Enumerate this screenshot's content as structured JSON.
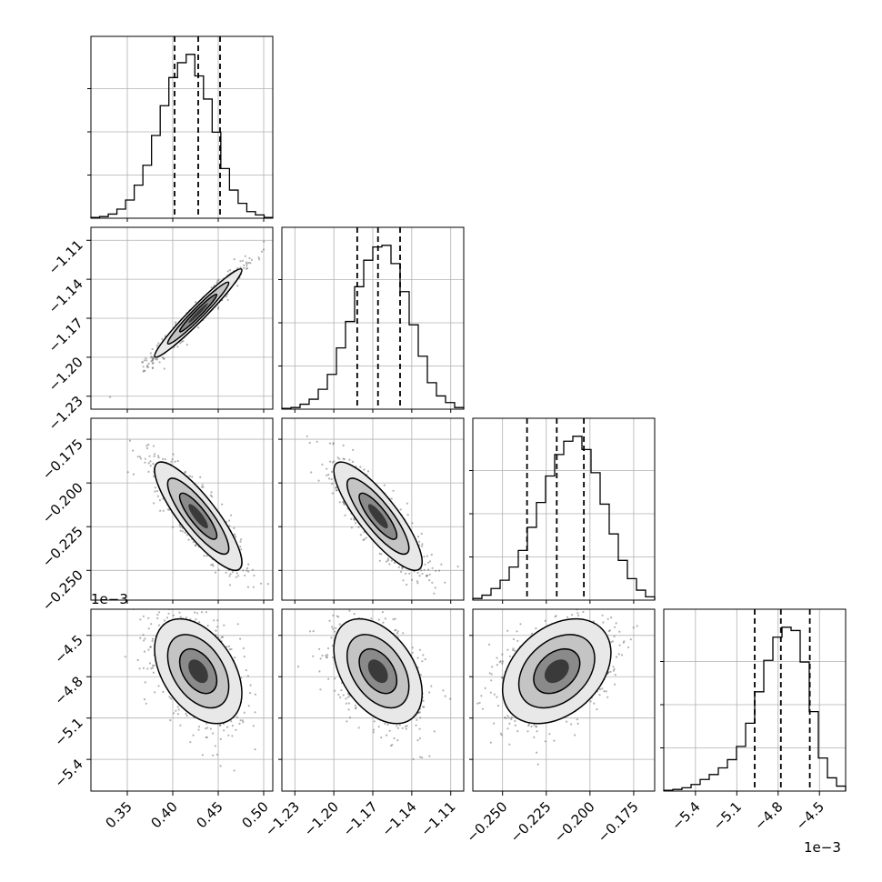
{
  "chart_data": {
    "type": "corner",
    "parameters": [
      {
        "range": [
          0.31,
          0.51
        ],
        "ticks": [
          0.35,
          0.4,
          0.45,
          0.5
        ],
        "tick_labels": [
          "0.35",
          "0.40",
          "0.45",
          "0.50"
        ],
        "mean": 0.428,
        "sigma": 0.024,
        "quantiles": [
          0.402,
          0.428,
          0.452
        ]
      },
      {
        "range": [
          -1.24,
          -1.1
        ],
        "ticks": [
          -1.23,
          -1.2,
          -1.17,
          -1.14,
          -1.11
        ],
        "tick_labels": [
          "−1.23",
          "−1.20",
          "−1.17",
          "−1.14",
          "−1.11"
        ],
        "mean": -1.166,
        "sigma": 0.017,
        "quantiles": [
          -1.182,
          -1.166,
          -1.149
        ]
      },
      {
        "range": [
          -0.267,
          -0.163
        ],
        "ticks": [
          -0.25,
          -0.225,
          -0.2,
          -0.175
        ],
        "tick_labels": [
          "−0.250",
          "−0.225",
          "−0.200",
          "−0.175"
        ],
        "mean": -0.219,
        "sigma": 0.0155,
        "quantiles": [
          -0.236,
          -0.219,
          -0.2035
        ]
      },
      {
        "range": [
          -5.63,
          -4.31
        ],
        "ticks": [
          -5.4,
          -5.1,
          -4.8,
          -4.5
        ],
        "tick_labels": [
          "−5.4",
          "−5.1",
          "−4.8",
          "−4.5"
        ],
        "mean": -4.76,
        "sigma": 0.19,
        "quantiles": [
          -4.97,
          -4.78,
          -4.57
        ],
        "offset_text": "1e−3"
      }
    ],
    "histograms": [
      {
        "param": 0,
        "y_max": 1.0,
        "counts": [
          0.005,
          0.01,
          0.025,
          0.055,
          0.11,
          0.2,
          0.32,
          0.5,
          0.68,
          0.85,
          0.94,
          0.99,
          0.86,
          0.72,
          0.52,
          0.3,
          0.17,
          0.09,
          0.04,
          0.02,
          0.005
        ]
      },
      {
        "param": 1,
        "y_max": 1.0,
        "counts": [
          0.005,
          0.01,
          0.03,
          0.06,
          0.12,
          0.21,
          0.37,
          0.53,
          0.74,
          0.9,
          0.98,
          0.99,
          0.88,
          0.71,
          0.51,
          0.32,
          0.16,
          0.08,
          0.04,
          0.01
        ]
      },
      {
        "param": 2,
        "y_max": 1.0,
        "counts": [
          0.01,
          0.03,
          0.07,
          0.12,
          0.2,
          0.3,
          0.44,
          0.59,
          0.75,
          0.88,
          0.96,
          0.99,
          0.91,
          0.77,
          0.58,
          0.4,
          0.24,
          0.13,
          0.06,
          0.02
        ]
      },
      {
        "param": 3,
        "y_max": 1.0,
        "counts": [
          0.005,
          0.01,
          0.02,
          0.04,
          0.07,
          0.1,
          0.14,
          0.19,
          0.27,
          0.41,
          0.6,
          0.79,
          0.93,
          0.99,
          0.97,
          0.78,
          0.48,
          0.2,
          0.08,
          0.03
        ]
      }
    ],
    "pairs": [
      {
        "x_param": 0,
        "y_param": 1,
        "correlation": 0.97
      },
      {
        "x_param": 0,
        "y_param": 2,
        "correlation": -0.85
      },
      {
        "x_param": 1,
        "y_param": 2,
        "correlation": -0.84
      },
      {
        "x_param": 0,
        "y_param": 3,
        "correlation": -0.42
      },
      {
        "x_param": 1,
        "y_param": 3,
        "correlation": -0.42
      },
      {
        "x_param": 2,
        "y_param": 3,
        "correlation": 0.35
      }
    ],
    "quantile_line_style": "dashed",
    "contour_levels": 3,
    "grid": true
  },
  "offset_labels": {
    "left": "1e−3",
    "bottom": "1e−3"
  },
  "colors": {
    "line": "#000000",
    "grid": "#b0b0b0",
    "background": "#ffffff"
  }
}
